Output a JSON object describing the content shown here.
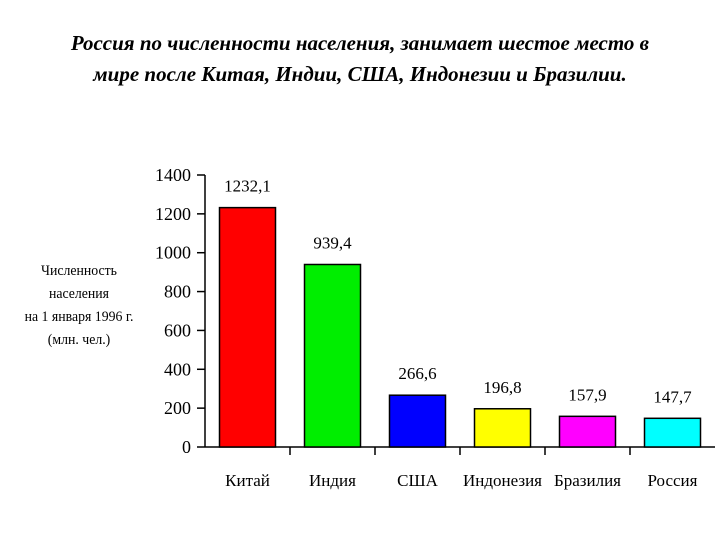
{
  "chart_data": {
    "type": "bar",
    "title_lines": [
      "Россия по численности населения, занимает шестое место в",
      "мире после Китая, Индии, США, Индонезии и Бразилии."
    ],
    "ylabel_lines": [
      "Численность",
      "населения",
      "на 1 января 1996 г.",
      "(млн. чел.)"
    ],
    "xlabel": "",
    "categories": [
      "Китай",
      "Индия",
      "США",
      "Индонезия",
      "Бразилия",
      "Россия"
    ],
    "values": [
      1232.1,
      939.4,
      266.6,
      196.8,
      157.9,
      147.7
    ],
    "value_labels": [
      "1232,1",
      "939,4",
      "266,6",
      "196,8",
      "157,9",
      "147,7"
    ],
    "colors": [
      "#ff0000",
      "#00ee00",
      "#0000ff",
      "#ffff00",
      "#ff00ff",
      "#00ffff"
    ],
    "ylim": [
      0,
      1400
    ],
    "yticks": [
      0,
      200,
      400,
      600,
      800,
      1000,
      1200,
      1400
    ],
    "grid": false,
    "legend": "none"
  }
}
